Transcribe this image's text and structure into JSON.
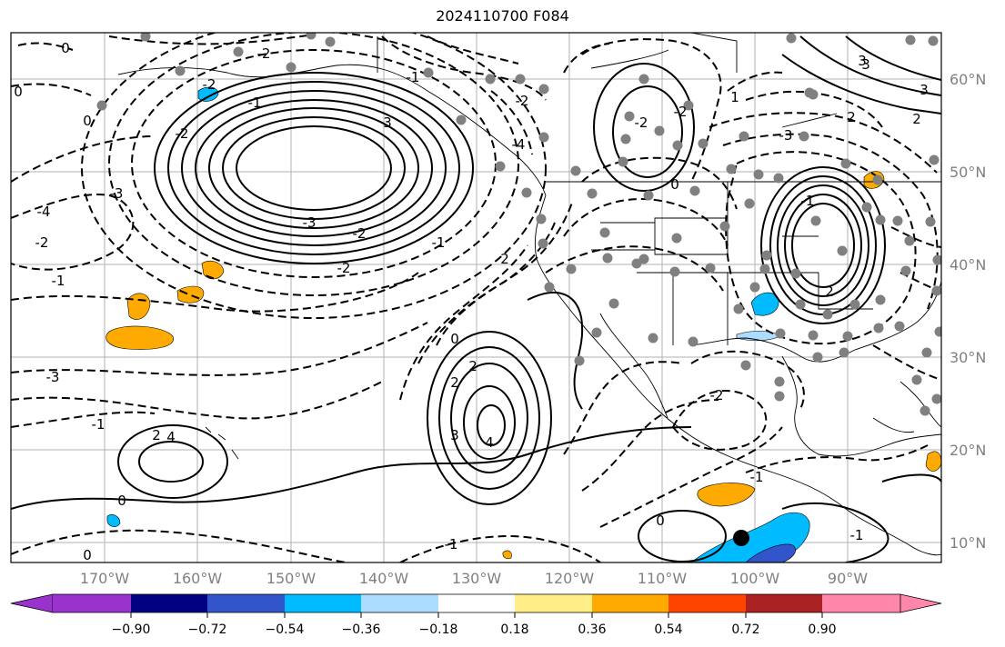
{
  "title": "2024110700 F084",
  "lon_labels": [
    "170°W",
    "160°W",
    "150°W",
    "140°W",
    "130°W",
    "120°W",
    "110°W",
    "100°W",
    "90°W"
  ],
  "lat_labels": [
    "60°N",
    "50°N",
    "40°N",
    "30°N",
    "20°N",
    "10°N"
  ],
  "colorbar": {
    "colors": [
      "#9933cc",
      "#000080",
      "#3355cc",
      "#00bbff",
      "#aaddff",
      "#ffffff",
      "#ffee88",
      "#ffaa00",
      "#ff4400",
      "#aa2222",
      "#ff88aa"
    ],
    "tick_labels": [
      "−0.90",
      "−0.72",
      "−0.54",
      "−0.36",
      "−0.18",
      "0.18",
      "0.36",
      "0.54",
      "0.72",
      "0.90"
    ]
  },
  "contour_labels": [
    "0",
    "-2",
    "-2",
    "-1",
    "0",
    "-2",
    "-3",
    "-4",
    "0",
    "-2",
    "-3",
    "-2",
    "-1",
    "-2",
    "3",
    "4",
    "2",
    "3",
    "2",
    "-2",
    "-2",
    "-4",
    "-2",
    "-1",
    "2",
    "-3",
    "-3",
    "0",
    "1",
    "-1",
    "2",
    "-2",
    "3",
    "4",
    "0",
    "0",
    "-1",
    "2",
    "-1",
    "0",
    "-1",
    "-1",
    "2",
    "2",
    "0",
    "3",
    "3",
    "-1"
  ],
  "marker_color": "#000000"
}
